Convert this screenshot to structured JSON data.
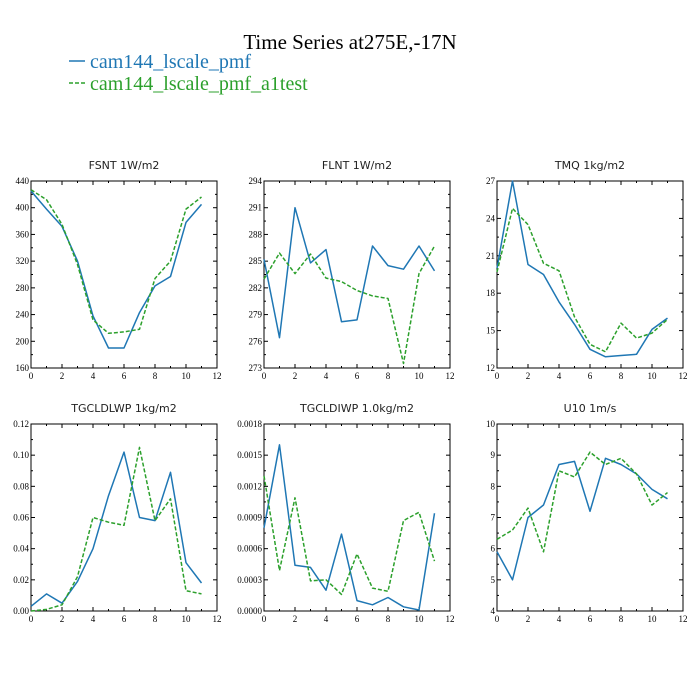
{
  "figure": {
    "title": "Time Series at275E,-17N",
    "legend": [
      {
        "name": "cam144_lscale_pmf",
        "color": "#1f77b4",
        "dash": "solid"
      },
      {
        "name": "cam144_lscale_pmf_a1test",
        "color": "#2ca02c",
        "dash": "dashed"
      }
    ]
  },
  "chart_data": [
    {
      "type": "line",
      "title": "FSNT  1W/m2",
      "x": [
        0,
        1,
        2,
        3,
        4,
        5,
        6,
        7,
        8,
        9,
        10,
        11
      ],
      "xlim": [
        0,
        12
      ],
      "xticks": [
        0,
        2,
        4,
        6,
        8,
        10,
        12
      ],
      "xtick_labels": [
        "0",
        "2",
        "4",
        "6",
        "8",
        "10",
        "12"
      ],
      "ylim": [
        160,
        440
      ],
      "yticks": [
        160,
        200,
        240,
        280,
        320,
        360,
        400,
        440
      ],
      "ytick_labels": [
        "160",
        "200",
        "240",
        "280",
        "320",
        "360",
        "400",
        "440"
      ],
      "series": [
        {
          "name": "cam144_lscale_pmf",
          "values": [
            425,
            398,
            372,
            320,
            238,
            190,
            190,
            243,
            283,
            297,
            378,
            405
          ]
        },
        {
          "name": "cam144_lscale_pmf_a1test",
          "values": [
            427,
            412,
            375,
            315,
            232,
            212,
            214,
            218,
            294,
            320,
            398,
            416
          ]
        }
      ]
    },
    {
      "type": "line",
      "title": "FLNT  1W/m2",
      "x": [
        0,
        1,
        2,
        3,
        4,
        5,
        6,
        7,
        8,
        9,
        10,
        11
      ],
      "xlim": [
        0,
        12
      ],
      "xticks": [
        0,
        2,
        4,
        6,
        8,
        10,
        12
      ],
      "xtick_labels": [
        "0",
        "2",
        "4",
        "6",
        "8",
        "10",
        "12"
      ],
      "ylim": [
        273,
        294
      ],
      "yticks": [
        273,
        276,
        279,
        282,
        285,
        288,
        291,
        294
      ],
      "ytick_labels": [
        "273",
        "276",
        "279",
        "282",
        "285",
        "288",
        "291",
        "294"
      ],
      "series": [
        {
          "name": "cam144_lscale_pmf",
          "values": [
            285.2,
            276.4,
            291.0,
            284.8,
            286.3,
            278.2,
            278.4,
            286.7,
            284.5,
            284.1,
            286.7,
            283.9
          ]
        },
        {
          "name": "cam144_lscale_pmf_a1test",
          "values": [
            283.0,
            285.9,
            283.6,
            285.8,
            283.1,
            282.7,
            281.7,
            281.1,
            280.8,
            273.5,
            283.6,
            286.7
          ]
        }
      ]
    },
    {
      "type": "line",
      "title": "TMQ  1kg/m2",
      "x": [
        0,
        1,
        2,
        3,
        4,
        5,
        6,
        7,
        8,
        9,
        10,
        11
      ],
      "xlim": [
        0,
        12
      ],
      "xticks": [
        0,
        2,
        4,
        6,
        8,
        10,
        12
      ],
      "xtick_labels": [
        "0",
        "2",
        "4",
        "6",
        "8",
        "10",
        "12"
      ],
      "ylim": [
        12,
        27
      ],
      "yticks": [
        12,
        15,
        18,
        21,
        24,
        27
      ],
      "ytick_labels": [
        "12",
        "15",
        "18",
        "21",
        "24",
        "27"
      ],
      "series": [
        {
          "name": "cam144_lscale_pmf",
          "values": [
            20.0,
            27.0,
            20.3,
            19.5,
            17.3,
            15.5,
            13.5,
            12.9,
            13.0,
            13.1,
            15.1,
            16.0
          ]
        },
        {
          "name": "cam144_lscale_pmf_a1test",
          "values": [
            19.7,
            24.8,
            23.5,
            20.4,
            19.8,
            16.1,
            13.9,
            13.3,
            15.6,
            14.4,
            14.8,
            15.9
          ]
        }
      ]
    },
    {
      "type": "line",
      "title": "TGCLDLWP  1kg/m2",
      "x": [
        0,
        1,
        2,
        3,
        4,
        5,
        6,
        7,
        8,
        9,
        10,
        11
      ],
      "xlim": [
        0,
        12
      ],
      "xticks": [
        0,
        2,
        4,
        6,
        8,
        10,
        12
      ],
      "xtick_labels": [
        "0",
        "2",
        "4",
        "6",
        "8",
        "10",
        "12"
      ],
      "ylim": [
        0,
        0.12
      ],
      "yticks": [
        0,
        0.02,
        0.04,
        0.06,
        0.08,
        0.1,
        0.12
      ],
      "ytick_labels": [
        "0.00",
        "0.02",
        "0.04",
        "0.06",
        "0.08",
        "0.10",
        "0.12"
      ],
      "series": [
        {
          "name": "cam144_lscale_pmf",
          "values": [
            0.003,
            0.011,
            0.005,
            0.019,
            0.04,
            0.074,
            0.102,
            0.06,
            0.058,
            0.089,
            0.031,
            0.018
          ]
        },
        {
          "name": "cam144_lscale_pmf_a1test",
          "values": [
            0.0,
            0.001,
            0.004,
            0.022,
            0.06,
            0.057,
            0.055,
            0.105,
            0.058,
            0.072,
            0.013,
            0.011
          ]
        }
      ]
    },
    {
      "type": "line",
      "title": "TGCLDIWP  1.0kg/m2",
      "x": [
        0,
        1,
        2,
        3,
        4,
        5,
        6,
        7,
        8,
        9,
        10,
        11
      ],
      "xlim": [
        0,
        12
      ],
      "xticks": [
        0,
        2,
        4,
        6,
        8,
        10,
        12
      ],
      "xtick_labels": [
        "0",
        "2",
        "4",
        "6",
        "8",
        "10",
        "12"
      ],
      "ylim": [
        0,
        0.0018
      ],
      "yticks": [
        0,
        0.0003,
        0.0006,
        0.0009,
        0.0012,
        0.0015,
        0.0018
      ],
      "ytick_labels": [
        "0.0000",
        "0.0003",
        "0.0006",
        "0.0009",
        "0.0012",
        "0.0015",
        "0.0018"
      ],
      "series": [
        {
          "name": "cam144_lscale_pmf",
          "values": [
            0.0008,
            0.0016,
            0.00044,
            0.00042,
            0.0002,
            0.00074,
            0.0001,
            6e-05,
            0.00013,
            4e-05,
            1e-05,
            0.00094
          ]
        },
        {
          "name": "cam144_lscale_pmf_a1test",
          "values": [
            0.0013,
            0.00039,
            0.00109,
            0.00029,
            0.0003,
            0.00016,
            0.00055,
            0.00022,
            0.00019,
            0.00087,
            0.00095,
            0.00048
          ]
        }
      ]
    },
    {
      "type": "line",
      "title": "U10  1m/s",
      "x": [
        0,
        1,
        2,
        3,
        4,
        5,
        6,
        7,
        8,
        9,
        10,
        11
      ],
      "xlim": [
        0,
        12
      ],
      "xticks": [
        0,
        2,
        4,
        6,
        8,
        10,
        12
      ],
      "xtick_labels": [
        "0",
        "2",
        "4",
        "6",
        "8",
        "10",
        "12"
      ],
      "ylim": [
        4,
        10
      ],
      "yticks": [
        4,
        5,
        6,
        7,
        8,
        9,
        10
      ],
      "ytick_labels": [
        "4",
        "5",
        "6",
        "7",
        "8",
        "9",
        "10"
      ],
      "series": [
        {
          "name": "cam144_lscale_pmf",
          "values": [
            5.9,
            5.0,
            7.0,
            7.4,
            8.7,
            8.8,
            7.2,
            8.9,
            8.7,
            8.4,
            7.9,
            7.6
          ]
        },
        {
          "name": "cam144_lscale_pmf_a1test",
          "values": [
            6.3,
            6.6,
            7.3,
            5.9,
            8.5,
            8.3,
            9.1,
            8.7,
            8.9,
            8.4,
            7.4,
            7.8
          ]
        }
      ]
    }
  ]
}
